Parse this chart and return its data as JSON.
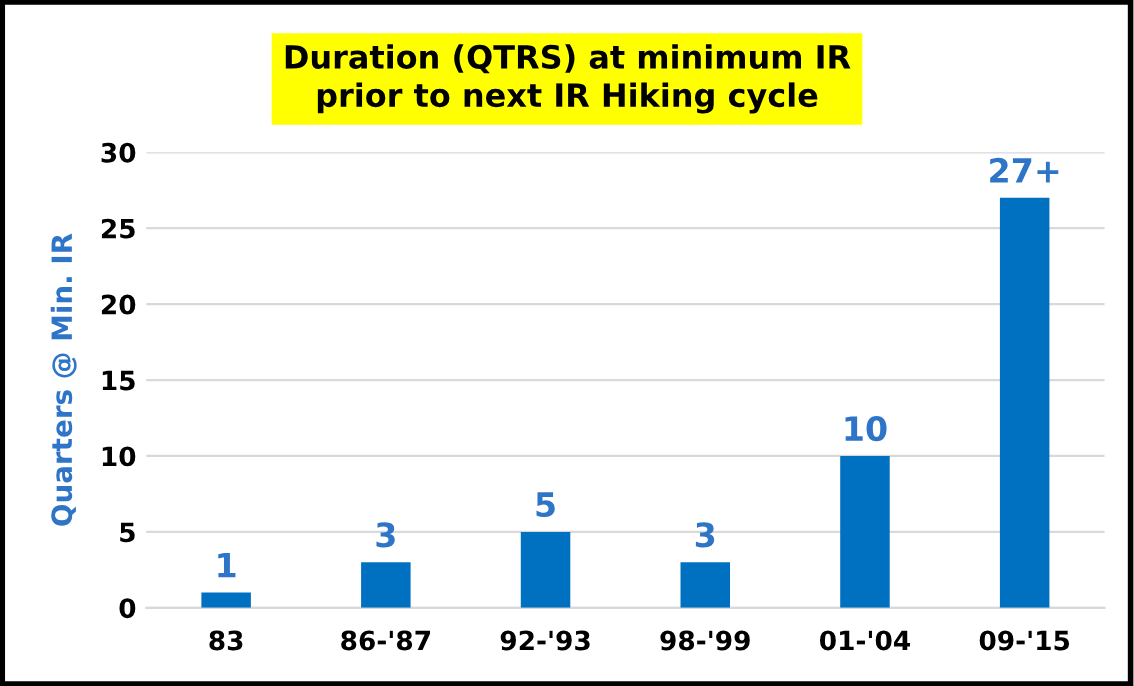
{
  "chart_data": {
    "type": "bar",
    "title": "Duration (QTRS) at minimum IR\nprior to next IR Hiking cycle",
    "ylabel": "Quarters @ Min. IR",
    "categories": [
      "83",
      "86-'87",
      "92-'93",
      "98-'99",
      "01-'04",
      "09-'15"
    ],
    "values": [
      1,
      3,
      5,
      3,
      10,
      27
    ],
    "value_labels": [
      "1",
      "3",
      "5",
      "3",
      "10",
      "27+"
    ],
    "color": "#0070c0",
    "ylim": [
      0,
      30
    ],
    "yticks": [
      0,
      5,
      10,
      15,
      20,
      25,
      30
    ],
    "grid": "y"
  }
}
